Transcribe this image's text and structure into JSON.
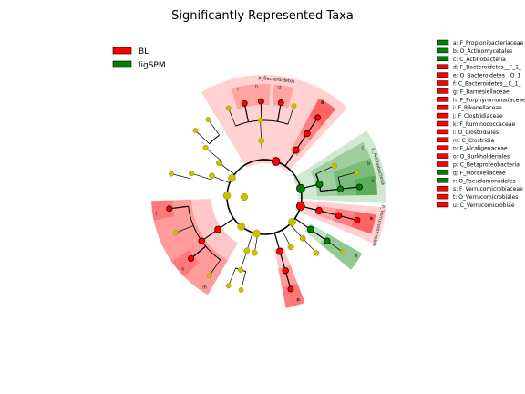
{
  "chart_data": {
    "type": "cladogram",
    "title": "Significantly Represented Taxa",
    "groups": [
      {
        "name": "BL",
        "color": "#ff0000"
      },
      {
        "name": "ligSPM",
        "color": "#008000"
      }
    ],
    "taxa": [
      {
        "key": "a",
        "label": "a: F_Propionibacteriaceae",
        "group": "ligSPM"
      },
      {
        "key": "b",
        "label": "b: O_Actinomycetales",
        "group": "ligSPM"
      },
      {
        "key": "c",
        "label": "c: C_Actinobacteria",
        "group": "ligSPM"
      },
      {
        "key": "d",
        "label": "d: F_Bacteroidetes__F_1_",
        "group": "BL"
      },
      {
        "key": "e",
        "label": "e: O_Bacteroidetes__O_1_",
        "group": "BL"
      },
      {
        "key": "f",
        "label": "f: C_Bacteroidetes__C_1_",
        "group": "BL"
      },
      {
        "key": "g",
        "label": "g: F_Barnesiellaceae",
        "group": "BL"
      },
      {
        "key": "h",
        "label": "h: F_Porphyromonadaceae",
        "group": "BL"
      },
      {
        "key": "i",
        "label": "i: F_Rikenellaceae",
        "group": "BL"
      },
      {
        "key": "j",
        "label": "j: F_Clostridiaceae",
        "group": "BL"
      },
      {
        "key": "k",
        "label": "k: F_Ruminococcaceae",
        "group": "BL"
      },
      {
        "key": "l",
        "label": "l: O_Clostridiales",
        "group": "BL"
      },
      {
        "key": "m",
        "label": "m: C_Clostridia",
        "group": "BL"
      },
      {
        "key": "n",
        "label": "n: F_Alcaligenaceae",
        "group": "BL"
      },
      {
        "key": "o",
        "label": "o: O_Burkholderiales",
        "group": "BL"
      },
      {
        "key": "p",
        "label": "p: C_Betaproteobacteria",
        "group": "BL"
      },
      {
        "key": "q",
        "label": "q: F_Moraxellaceae",
        "group": "ligSPM"
      },
      {
        "key": "r",
        "label": "r: O_Pseudomonadales",
        "group": "ligSPM"
      },
      {
        "key": "s",
        "label": "s: F_Verrucomicrobiaceae",
        "group": "BL"
      },
      {
        "key": "t",
        "label": "t: O_Verrucomicrobiales",
        "group": "BL"
      },
      {
        "key": "u",
        "label": "u: C_Verrucomicrobiae",
        "group": "BL"
      }
    ],
    "phylum_labels": [
      {
        "text": "p_Bacteroidetes",
        "group": "BL"
      },
      {
        "text": "p_Actinobacteria",
        "group": "ligSPM"
      },
      {
        "text": "p_Verrucomicrobia",
        "group": "BL"
      }
    ]
  }
}
